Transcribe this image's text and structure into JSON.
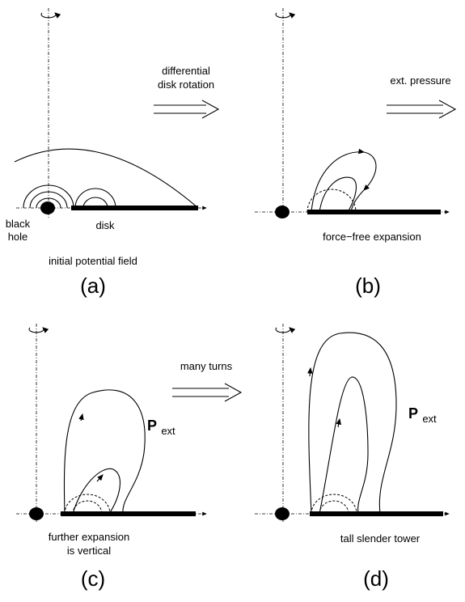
{
  "panels": [
    {
      "label": "(a)",
      "caption": [
        "initial potential field"
      ],
      "annotations": [
        "black",
        "hole",
        "disk"
      ]
    },
    {
      "label": "(b)",
      "caption": [
        "force−free expansion"
      ]
    },
    {
      "label": "(c)",
      "caption": [
        "further expansion",
        "is vertical"
      ],
      "pressure": {
        "symbol": "P",
        "subscript": "ext"
      }
    },
    {
      "label": "(d)",
      "caption": [
        "tall slender tower"
      ],
      "pressure": {
        "symbol": "P",
        "subscript": "ext"
      }
    }
  ],
  "arrows": [
    {
      "label": [
        "differential",
        "disk rotation"
      ]
    },
    {
      "label": [
        "ext. pressure"
      ]
    },
    {
      "label": [
        "many turns"
      ]
    }
  ]
}
